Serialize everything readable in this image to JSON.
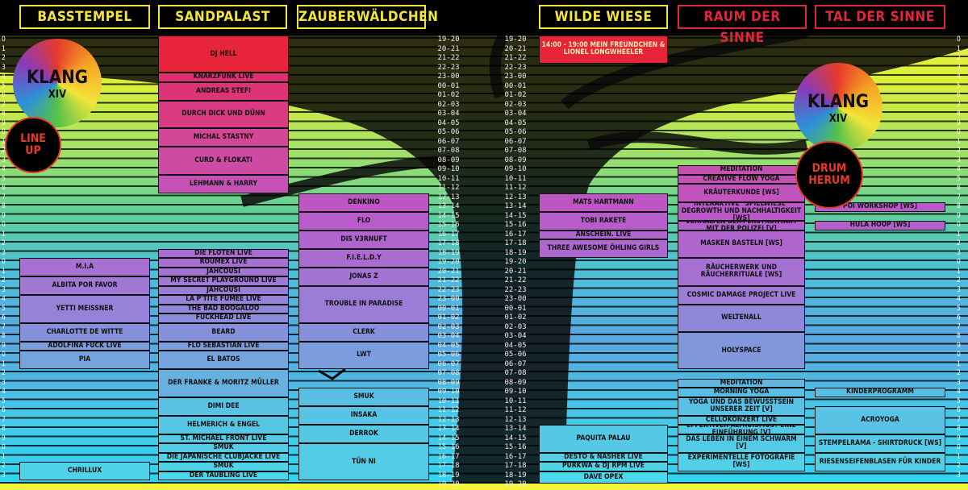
{
  "stages": [
    {
      "name": "BASSTEMPEL",
      "key": "bass"
    },
    {
      "name": "SANDPALAST",
      "key": "sand"
    },
    {
      "name": "ZAUBERWÄLDCHEN",
      "key": "zauber"
    },
    {
      "name": "WILDE WIESE",
      "key": "wiese"
    },
    {
      "name": "RAUM DER SINNE",
      "key": "raum"
    },
    {
      "name": "TAL DER SINNE",
      "key": "tal"
    }
  ],
  "logo_left": {
    "word": "KLANG",
    "sub": "XIV",
    "badge": "LINE UP"
  },
  "logo_right": {
    "word": "KLANG",
    "sub": "XIV",
    "badge": "DRUM HERUM"
  },
  "timeslots": [
    "19-20",
    "20-21",
    "21-22",
    "22-23",
    "23-00",
    "00-01",
    "01-02",
    "02-03",
    "03-04",
    "04-05",
    "05-06",
    "06-07",
    "07-08",
    "08-09",
    "09-10",
    "10-11",
    "11-12",
    "12-13",
    "13-14",
    "14-15",
    "15-16",
    "16-17",
    "17-18",
    "18-19",
    "19-20",
    "20-21",
    "21-22",
    "22-23",
    "23-00",
    "00-01",
    "01-02",
    "02-03",
    "03-04",
    "04-05",
    "05-06",
    "06-07",
    "07-08",
    "08-09",
    "09-10",
    "10-11",
    "11-12",
    "12-13",
    "13-14",
    "14-15",
    "15-16",
    "16-17",
    "17-18",
    "18-19",
    "19-20"
  ],
  "hours_left": [
    "0",
    "1",
    "2",
    "3",
    "4",
    "5",
    "6",
    "7",
    "8",
    "9",
    "0",
    "1",
    "2",
    "3",
    "4",
    "5",
    "6",
    "7",
    "8",
    "9",
    "0",
    "1",
    "2",
    "3",
    "0",
    "1",
    "2",
    "3",
    "4",
    "5",
    "6",
    "7",
    "8",
    "9",
    "0",
    "1",
    "2",
    "3",
    "4",
    "5",
    "6",
    "7",
    "8",
    "9",
    "0",
    "1",
    "2",
    "3",
    "4",
    "5"
  ],
  "acts": {
    "sand": [
      {
        "t": "DJ HELL",
        "r": 0,
        "s": 4
      },
      {
        "t": "KNARZFUNK LIVE",
        "r": 4,
        "s": 1
      },
      {
        "t": "ANDREAS STEFI",
        "r": 5,
        "s": 2
      },
      {
        "t": "DURCH DICK UND DÜNN",
        "r": 7,
        "s": 3
      },
      {
        "t": "MICHAL STASTNY",
        "r": 10,
        "s": 2
      },
      {
        "t": "CURD & FLOKATI",
        "r": 12,
        "s": 3
      },
      {
        "t": "LEHMANN & HARRY",
        "r": 15,
        "s": 2
      },
      {
        "t": "DIE FLÖTEN LIVE",
        "r": 23,
        "s": 1
      },
      {
        "t": "ROUMEX LIVE",
        "r": 24,
        "s": 1
      },
      {
        "t": "JAHCOUSI",
        "r": 25,
        "s": 1
      },
      {
        "t": "MY SECRET PLAYGROUND LIVE",
        "r": 26,
        "s": 1
      },
      {
        "t": "JAHCOUSI",
        "r": 27,
        "s": 1
      },
      {
        "t": "LA P'TITE FUMÉE LIVE",
        "r": 28,
        "s": 1
      },
      {
        "t": "THE BAD BOOGALOO",
        "r": 29,
        "s": 1
      },
      {
        "t": "FUCKHEAD LIVE",
        "r": 30,
        "s": 1
      },
      {
        "t": "BEARD",
        "r": 31,
        "s": 2
      },
      {
        "t": "FLO SEBASTIAN LIVE",
        "r": 33,
        "s": 1
      },
      {
        "t": "EL BATOS",
        "r": 34,
        "s": 2
      },
      {
        "t": "DER FRANKE & MORITZ MÜLLER",
        "r": 36,
        "s": 3
      },
      {
        "t": "DIMI DEE",
        "r": 39,
        "s": 2
      },
      {
        "t": "HELMERICH & ENGEL",
        "r": 41,
        "s": 2
      },
      {
        "t": "ST. MICHAEL FRONT LIVE",
        "r": 43,
        "s": 1
      },
      {
        "t": "SMUK",
        "r": 44,
        "s": 1
      },
      {
        "t": "DIE JAPANISCHE CLUBJACKE LIVE",
        "r": 45,
        "s": 1
      },
      {
        "t": "SMUK",
        "r": 46,
        "s": 1
      },
      {
        "t": "DER TÄUBLING LIVE",
        "r": 47,
        "s": 1
      }
    ],
    "bass": [
      {
        "t": "M.I.A",
        "r": 24,
        "s": 2
      },
      {
        "t": "ALBITA POR FAVOR",
        "r": 26,
        "s": 2
      },
      {
        "t": "YETTI MEISSNER",
        "r": 28,
        "s": 3
      },
      {
        "t": "CHARLOTTE DE WITTE",
        "r": 31,
        "s": 2
      },
      {
        "t": "ADOLFINA FUCK LIVE",
        "r": 33,
        "s": 1
      },
      {
        "t": "PIA",
        "r": 34,
        "s": 2
      },
      {
        "t": "CHRILLUX",
        "r": 46,
        "s": 2
      }
    ],
    "zauber": [
      {
        "t": "DENKINO",
        "r": 17,
        "s": 2
      },
      {
        "t": "FLO",
        "r": 19,
        "s": 2
      },
      {
        "t": "DIS V3RNUFT",
        "r": 21,
        "s": 2
      },
      {
        "t": "F.I.E.L.D.Y",
        "r": 23,
        "s": 2
      },
      {
        "t": "JONAS Z",
        "r": 25,
        "s": 2
      },
      {
        "t": "TROUBLE IN PARADISE",
        "r": 27,
        "s": 4
      },
      {
        "t": "CLERK",
        "r": 31,
        "s": 2
      },
      {
        "t": "LWT",
        "r": 33,
        "s": 3
      },
      {
        "t": "SMUK",
        "r": 38,
        "s": 2
      },
      {
        "t": "INSAKA",
        "r": 40,
        "s": 2
      },
      {
        "t": "DERROK",
        "r": 42,
        "s": 2
      },
      {
        "t": "TÜN NI",
        "r": 44,
        "s": 4
      }
    ],
    "wiese": [
      {
        "t": "14:00 - 19:00 MEIN FREUNDCHEN & LIONEL LONGWHEELER",
        "r": 0,
        "s": 3
      },
      {
        "t": "MATS HARTMANN",
        "r": 17,
        "s": 2
      },
      {
        "t": "TOBI RAKETE",
        "r": 19,
        "s": 2
      },
      {
        "t": "ANSCHEIN. LIVE",
        "r": 21,
        "s": 1
      },
      {
        "t": "THREE AWESOME ÖHLING GIRLS",
        "r": 22,
        "s": 2
      },
      {
        "t": "PAQUITA PALAU",
        "r": 42,
        "s": 3
      },
      {
        "t": "DESTO & NASHER LIVE",
        "r": 45,
        "s": 1
      },
      {
        "t": "PURKWA & DJ RPM LIVE",
        "r": 46,
        "s": 1
      },
      {
        "t": "DAVE OPEX",
        "r": 47,
        "s": 2
      }
    ],
    "raum": [
      {
        "t": "MEDITATION",
        "r": 14,
        "s": 1
      },
      {
        "t": "CREATIVE FLOW YOGA",
        "r": 15,
        "s": 1
      },
      {
        "t": "KRÄUTERKUNDE [WS]",
        "r": 16,
        "s": 2
      },
      {
        "t": "INTERAKTIVE \"SPIELWIESE\" DEGROWTH UND NACHHALTIGKEIT [WS]",
        "r": 18,
        "s": 2
      },
      {
        "t": "VERHALTEN BEIM ERSTKONTAKT MIT DER POLIZEI [V]",
        "r": 20,
        "s": 1
      },
      {
        "t": "MASKEN BASTELN [WS]",
        "r": 21,
        "s": 3
      },
      {
        "t": "RÄUCHERWERK UND RÄUCHERRITUALE [WS]",
        "r": 24,
        "s": 3
      },
      {
        "t": "COSMIC DAMAGE PROJECT LIVE",
        "r": 27,
        "s": 2
      },
      {
        "t": "WELTENALL",
        "r": 29,
        "s": 3
      },
      {
        "t": "HOLYSPACE",
        "r": 32,
        "s": 4
      },
      {
        "t": "MEDITATION",
        "r": 37,
        "s": 1
      },
      {
        "t": "MORNING YOGA",
        "r": 38,
        "s": 1
      },
      {
        "t": "YOGA UND DAS BEWUSSTSEIN UNSERER ZEIT [V]",
        "r": 39,
        "s": 2
      },
      {
        "t": "CELLOKONZERT LIVE",
        "r": 41,
        "s": 1
      },
      {
        "t": "EFFEKTIVER ALTRUISMUS? EINE EINFÜHRUNG [V]",
        "r": 42,
        "s": 1
      },
      {
        "t": "DAS LEBEN IN EINEM SCHWARM [V]",
        "r": 43,
        "s": 2
      },
      {
        "t": "EXPERIMENTELLE FOTOGRAFIE [WS]",
        "r": 45,
        "s": 2
      }
    ],
    "tal": [
      {
        "t": "POI WORKSHOP [WS]",
        "r": 18,
        "s": 1
      },
      {
        "t": "HULA HOOP [WS]",
        "r": 20,
        "s": 1
      },
      {
        "t": "KINDERPROGRAMM",
        "r": 38,
        "s": 1
      },
      {
        "t": "ACROYOGA",
        "r": 40,
        "s": 3
      },
      {
        "t": "STEMPELRAMA - SHIRTDRUCK [WS]",
        "r": 43,
        "s": 2
      },
      {
        "t": "RIESENSEIFENBLASEN FÜR KINDER",
        "r": 45,
        "s": 2
      }
    ]
  }
}
